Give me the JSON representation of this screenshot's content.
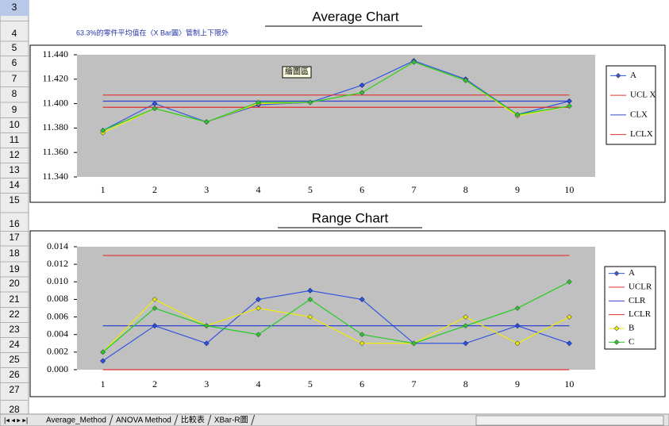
{
  "row_headers": [
    3,
    4,
    5,
    6,
    7,
    8,
    9,
    10,
    11,
    12,
    13,
    14,
    15,
    16,
    17,
    18,
    19,
    20,
    21,
    22,
    23,
    24,
    25,
    26,
    27,
    28
  ],
  "sheet_tabs": [
    "Average_Method",
    "ANOVA Method",
    "比較表",
    "XBar-R圖"
  ],
  "chart_data": [
    {
      "type": "line",
      "title": "Average Chart",
      "annotation": "63.3%的零件平均值在〈X Bar圖〉管制上下限外",
      "tooltip": "繪圖區",
      "categories": [
        "1",
        "2",
        "3",
        "4",
        "5",
        "6",
        "7",
        "8",
        "9",
        "10"
      ],
      "ylim": [
        11.34,
        11.44
      ],
      "yticks": [
        {
          "value": 11.34,
          "label": "11.340"
        },
        {
          "value": 11.36,
          "label": "11.360"
        },
        {
          "value": 11.38,
          "label": "11.380"
        },
        {
          "value": 11.4,
          "label": "11.400"
        },
        {
          "value": 11.42,
          "label": "11.420"
        },
        {
          "value": 11.44,
          "label": "11.440"
        }
      ],
      "legend": "right",
      "series": [
        {
          "name": "A",
          "color": "#3355dd",
          "marker": "diamond",
          "values": [
            11.378,
            11.4,
            11.385,
            11.399,
            11.401,
            11.415,
            11.435,
            11.42,
            11.391,
            11.402
          ]
        },
        {
          "name": "UCL X",
          "color": "#e03030",
          "values": [
            11.407,
            11.407,
            11.407,
            11.407,
            11.407,
            11.407,
            11.407,
            11.407,
            11.407,
            11.407
          ]
        },
        {
          "name": "CLX",
          "color": "#3344cc",
          "values": [
            11.402,
            11.402,
            11.402,
            11.402,
            11.402,
            11.402,
            11.402,
            11.402,
            11.402,
            11.402
          ]
        },
        {
          "name": "LCLX",
          "color": "#e03030",
          "values": [
            11.397,
            11.397,
            11.397,
            11.397,
            11.397,
            11.397,
            11.397,
            11.397,
            11.397,
            11.397
          ]
        },
        {
          "color": "#eeee00",
          "marker": "diamond",
          "values": [
            11.376,
            11.396,
            11.385,
            11.4,
            11.401,
            11.409,
            11.434,
            11.419,
            11.39,
            11.398
          ]
        },
        {
          "color": "#22cc22",
          "marker": "diamond",
          "values": [
            11.378,
            11.396,
            11.385,
            11.401,
            11.401,
            11.409,
            11.434,
            11.419,
            11.391,
            11.398
          ]
        }
      ]
    },
    {
      "type": "line",
      "title": "Range Chart",
      "categories": [
        "1",
        "2",
        "3",
        "4",
        "5",
        "6",
        "7",
        "8",
        "9",
        "10"
      ],
      "ylim": [
        0,
        0.014
      ],
      "yticks": [
        {
          "value": 0,
          "label": "0.000"
        },
        {
          "value": 0.002,
          "label": "0.002"
        },
        {
          "value": 0.004,
          "label": "0.004"
        },
        {
          "value": 0.006,
          "label": "0.006"
        },
        {
          "value": 0.008,
          "label": "0.008"
        },
        {
          "value": 0.01,
          "label": "0.010"
        },
        {
          "value": 0.012,
          "label": "0.012"
        },
        {
          "value": 0.014,
          "label": "0.014"
        }
      ],
      "legend": "right",
      "series": [
        {
          "name": "A",
          "color": "#3355dd",
          "marker": "diamond",
          "values": [
            0.001,
            0.005,
            0.003,
            0.008,
            0.009,
            0.008,
            0.003,
            0.003,
            0.005,
            0.003
          ]
        },
        {
          "name": "UCLR",
          "color": "#e03030",
          "values": [
            0.013,
            0.013,
            0.013,
            0.013,
            0.013,
            0.013,
            0.013,
            0.013,
            0.013,
            0.013
          ]
        },
        {
          "name": "CLR",
          "color": "#3344cc",
          "values": [
            0.005,
            0.005,
            0.005,
            0.005,
            0.005,
            0.005,
            0.005,
            0.005,
            0.005,
            0.005
          ]
        },
        {
          "name": "LCLR",
          "color": "#e03030",
          "values": [
            0,
            0,
            0,
            0,
            0,
            0,
            0,
            0,
            0,
            0
          ]
        },
        {
          "name": "B",
          "color": "#eeee00",
          "marker": "diamond",
          "values": [
            0.002,
            0.008,
            0.005,
            0.007,
            0.006,
            0.003,
            0.003,
            0.006,
            0.003,
            0.006
          ]
        },
        {
          "name": "C",
          "color": "#22cc22",
          "marker": "diamond",
          "values": [
            0.002,
            0.007,
            0.005,
            0.004,
            0.008,
            0.004,
            0.003,
            0.005,
            0.007,
            0.01
          ]
        }
      ]
    }
  ]
}
